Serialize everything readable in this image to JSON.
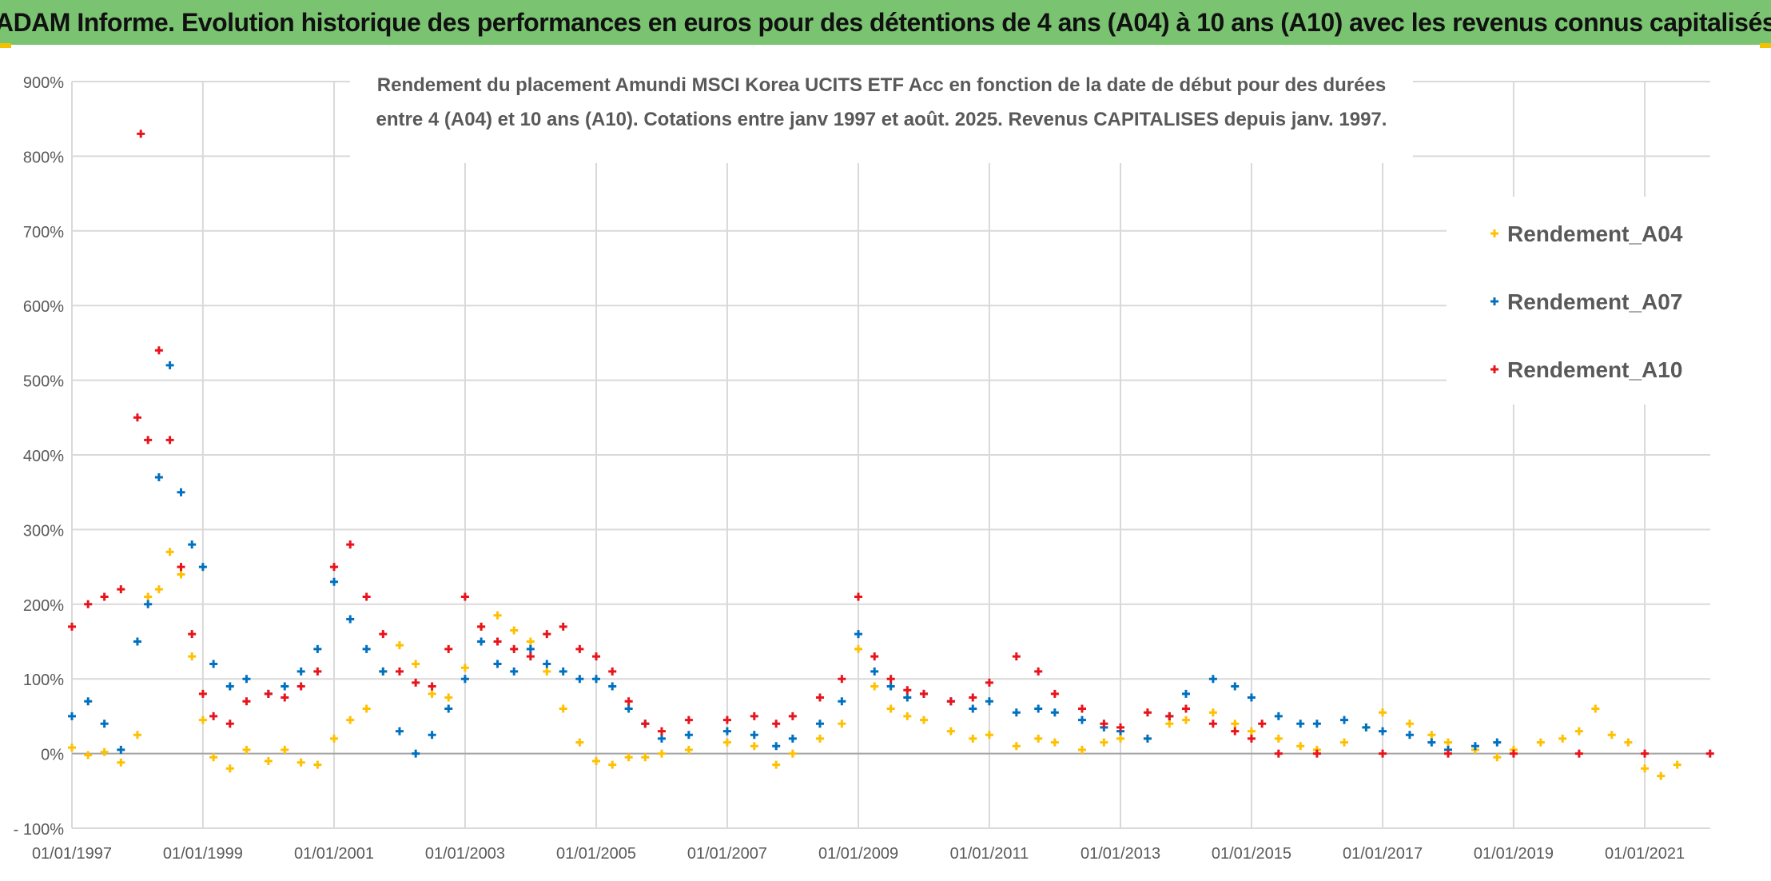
{
  "banner": {
    "title": "ADAM Informe. Evolution historique des performances en euros pour des détentions de 4 ans (A04) à 10 ans (A10) avec les revenus connus capitalisés"
  },
  "chart_data": {
    "type": "scatter",
    "title_line1": "Rendement du placement Amundi MSCI Korea UCITS ETF Acc en fonction de la date de début pour des durées",
    "title_line2": "entre 4 (A04) et 10 ans (A10). Cotations entre janv 1997 et août. 2025. Revenus CAPITALISES depuis janv. 1997.",
    "x_type": "date",
    "xlim": [
      "1997-01-01",
      "2022-01-01"
    ],
    "x_ticks": [
      "01/01/1997",
      "01/01/1999",
      "01/01/2001",
      "01/01/2003",
      "01/01/2005",
      "01/01/2007",
      "01/01/2009",
      "01/01/2011",
      "01/01/2013",
      "01/01/2015",
      "01/01/2017",
      "01/01/2019",
      "01/01/2021"
    ],
    "ylim": [
      -100,
      900
    ],
    "y_ticks": [
      "- 100%",
      "0%",
      "100%",
      "200%",
      "300%",
      "400%",
      "500%",
      "600%",
      "700%",
      "800%",
      "900%"
    ],
    "grid": true,
    "legend_position": "top-right",
    "series": [
      {
        "name": "Rendement_A04",
        "color": "#ffc000",
        "points": [
          [
            "1997-01-01",
            8
          ],
          [
            "1997-04-01",
            -2
          ],
          [
            "1997-07-01",
            2
          ],
          [
            "1997-10-01",
            -12
          ],
          [
            "1998-01-01",
            25
          ],
          [
            "1998-03-01",
            210
          ],
          [
            "1998-05-01",
            220
          ],
          [
            "1998-07-01",
            270
          ],
          [
            "1998-09-01",
            240
          ],
          [
            "1998-11-01",
            130
          ],
          [
            "1999-01-01",
            45
          ],
          [
            "1999-03-01",
            -5
          ],
          [
            "1999-06-01",
            -20
          ],
          [
            "1999-09-01",
            5
          ],
          [
            "2000-01-01",
            -10
          ],
          [
            "2000-04-01",
            5
          ],
          [
            "2000-07-01",
            -12
          ],
          [
            "2000-10-01",
            -15
          ],
          [
            "2001-01-01",
            20
          ],
          [
            "2001-04-01",
            45
          ],
          [
            "2001-07-01",
            60
          ],
          [
            "2001-10-01",
            110
          ],
          [
            "2002-01-01",
            145
          ],
          [
            "2002-04-01",
            120
          ],
          [
            "2002-07-01",
            80
          ],
          [
            "2002-10-01",
            75
          ],
          [
            "2003-01-01",
            115
          ],
          [
            "2003-04-01",
            170
          ],
          [
            "2003-07-01",
            185
          ],
          [
            "2003-10-01",
            165
          ],
          [
            "2004-01-01",
            150
          ],
          [
            "2004-04-01",
            110
          ],
          [
            "2004-07-01",
            60
          ],
          [
            "2004-10-01",
            15
          ],
          [
            "2005-01-01",
            -10
          ],
          [
            "2005-04-01",
            -15
          ],
          [
            "2005-07-01",
            -5
          ],
          [
            "2005-10-01",
            -5
          ],
          [
            "2006-01-01",
            0
          ],
          [
            "2006-06-01",
            5
          ],
          [
            "2007-01-01",
            15
          ],
          [
            "2007-06-01",
            10
          ],
          [
            "2007-10-01",
            -15
          ],
          [
            "2008-01-01",
            0
          ],
          [
            "2008-06-01",
            20
          ],
          [
            "2008-10-01",
            40
          ],
          [
            "2009-01-01",
            140
          ],
          [
            "2009-04-01",
            90
          ],
          [
            "2009-07-01",
            60
          ],
          [
            "2009-10-01",
            50
          ],
          [
            "2010-01-01",
            45
          ],
          [
            "2010-06-01",
            30
          ],
          [
            "2010-10-01",
            20
          ],
          [
            "2011-01-01",
            25
          ],
          [
            "2011-06-01",
            10
          ],
          [
            "2011-10-01",
            20
          ],
          [
            "2012-01-01",
            15
          ],
          [
            "2012-06-01",
            5
          ],
          [
            "2012-10-01",
            15
          ],
          [
            "2013-01-01",
            20
          ],
          [
            "2013-06-01",
            20
          ],
          [
            "2013-10-01",
            40
          ],
          [
            "2014-01-01",
            45
          ],
          [
            "2014-06-01",
            55
          ],
          [
            "2014-10-01",
            40
          ],
          [
            "2015-01-01",
            30
          ],
          [
            "2015-06-01",
            20
          ],
          [
            "2015-10-01",
            10
          ],
          [
            "2016-01-01",
            5
          ],
          [
            "2016-06-01",
            15
          ],
          [
            "2016-10-01",
            35
          ],
          [
            "2017-01-01",
            55
          ],
          [
            "2017-06-01",
            40
          ],
          [
            "2017-10-01",
            25
          ],
          [
            "2018-01-01",
            15
          ],
          [
            "2018-06-01",
            5
          ],
          [
            "2018-10-01",
            -5
          ],
          [
            "2019-01-01",
            5
          ],
          [
            "2019-06-01",
            15
          ],
          [
            "2019-10-01",
            20
          ],
          [
            "2020-01-01",
            30
          ],
          [
            "2020-04-01",
            60
          ],
          [
            "2020-07-01",
            25
          ],
          [
            "2020-10-01",
            15
          ],
          [
            "2021-01-01",
            -20
          ],
          [
            "2021-04-01",
            -30
          ],
          [
            "2021-07-01",
            -15
          ]
        ]
      },
      {
        "name": "Rendement_A07",
        "color": "#0070c0",
        "points": [
          [
            "1997-01-01",
            50
          ],
          [
            "1997-04-01",
            70
          ],
          [
            "1997-07-01",
            40
          ],
          [
            "1997-10-01",
            5
          ],
          [
            "1998-01-01",
            150
          ],
          [
            "1998-03-01",
            200
          ],
          [
            "1998-05-01",
            370
          ],
          [
            "1998-07-01",
            520
          ],
          [
            "1998-09-01",
            350
          ],
          [
            "1998-11-01",
            280
          ],
          [
            "1999-01-01",
            250
          ],
          [
            "1999-03-01",
            120
          ],
          [
            "1999-06-01",
            90
          ],
          [
            "1999-09-01",
            100
          ],
          [
            "2000-01-01",
            80
          ],
          [
            "2000-04-01",
            90
          ],
          [
            "2000-07-01",
            110
          ],
          [
            "2000-10-01",
            140
          ],
          [
            "2001-01-01",
            230
          ],
          [
            "2001-04-01",
            180
          ],
          [
            "2001-07-01",
            140
          ],
          [
            "2001-10-01",
            110
          ],
          [
            "2002-01-01",
            30
          ],
          [
            "2002-04-01",
            0
          ],
          [
            "2002-07-01",
            25
          ],
          [
            "2002-10-01",
            60
          ],
          [
            "2003-01-01",
            100
          ],
          [
            "2003-04-01",
            150
          ],
          [
            "2003-07-01",
            120
          ],
          [
            "2003-10-01",
            110
          ],
          [
            "2004-01-01",
            140
          ],
          [
            "2004-04-01",
            120
          ],
          [
            "2004-07-01",
            110
          ],
          [
            "2004-10-01",
            100
          ],
          [
            "2005-01-01",
            100
          ],
          [
            "2005-04-01",
            90
          ],
          [
            "2005-07-01",
            60
          ],
          [
            "2005-10-01",
            40
          ],
          [
            "2006-01-01",
            20
          ],
          [
            "2006-06-01",
            25
          ],
          [
            "2007-01-01",
            30
          ],
          [
            "2007-06-01",
            25
          ],
          [
            "2007-10-01",
            10
          ],
          [
            "2008-01-01",
            20
          ],
          [
            "2008-06-01",
            40
          ],
          [
            "2008-10-01",
            70
          ],
          [
            "2009-01-01",
            160
          ],
          [
            "2009-04-01",
            110
          ],
          [
            "2009-07-01",
            90
          ],
          [
            "2009-10-01",
            75
          ],
          [
            "2010-01-01",
            80
          ],
          [
            "2010-06-01",
            70
          ],
          [
            "2010-10-01",
            60
          ],
          [
            "2011-01-01",
            70
          ],
          [
            "2011-06-01",
            55
          ],
          [
            "2011-10-01",
            60
          ],
          [
            "2012-01-01",
            55
          ],
          [
            "2012-06-01",
            45
          ],
          [
            "2012-10-01",
            35
          ],
          [
            "2013-01-01",
            30
          ],
          [
            "2013-06-01",
            20
          ],
          [
            "2013-10-01",
            50
          ],
          [
            "2014-01-01",
            80
          ],
          [
            "2014-06-01",
            100
          ],
          [
            "2014-10-01",
            90
          ],
          [
            "2015-01-01",
            75
          ],
          [
            "2015-06-01",
            50
          ],
          [
            "2015-10-01",
            40
          ],
          [
            "2016-01-01",
            40
          ],
          [
            "2016-06-01",
            45
          ],
          [
            "2016-10-01",
            35
          ],
          [
            "2017-01-01",
            30
          ],
          [
            "2017-06-01",
            25
          ],
          [
            "2017-10-01",
            15
          ],
          [
            "2018-01-01",
            5
          ],
          [
            "2018-06-01",
            10
          ],
          [
            "2018-10-01",
            15
          ]
        ]
      },
      {
        "name": "Rendement_A10",
        "color": "#e8141b",
        "points": [
          [
            "1997-01-01",
            170
          ],
          [
            "1997-04-01",
            200
          ],
          [
            "1997-07-01",
            210
          ],
          [
            "1997-10-01",
            220
          ],
          [
            "1998-01-01",
            450
          ],
          [
            "1998-01-20",
            830
          ],
          [
            "1998-03-01",
            420
          ],
          [
            "1998-05-01",
            540
          ],
          [
            "1998-07-01",
            420
          ],
          [
            "1998-09-01",
            250
          ],
          [
            "1998-11-01",
            160
          ],
          [
            "1999-01-01",
            80
          ],
          [
            "1999-03-01",
            50
          ],
          [
            "1999-06-01",
            40
          ],
          [
            "1999-09-01",
            70
          ],
          [
            "2000-01-01",
            80
          ],
          [
            "2000-04-01",
            75
          ],
          [
            "2000-07-01",
            90
          ],
          [
            "2000-10-01",
            110
          ],
          [
            "2001-01-01",
            250
          ],
          [
            "2001-04-01",
            280
          ],
          [
            "2001-07-01",
            210
          ],
          [
            "2001-10-01",
            160
          ],
          [
            "2002-01-01",
            110
          ],
          [
            "2002-04-01",
            95
          ],
          [
            "2002-07-01",
            90
          ],
          [
            "2002-10-01",
            140
          ],
          [
            "2003-01-01",
            210
          ],
          [
            "2003-04-01",
            170
          ],
          [
            "2003-07-01",
            150
          ],
          [
            "2003-10-01",
            140
          ],
          [
            "2004-01-01",
            130
          ],
          [
            "2004-04-01",
            160
          ],
          [
            "2004-07-01",
            170
          ],
          [
            "2004-10-01",
            140
          ],
          [
            "2005-01-01",
            130
          ],
          [
            "2005-04-01",
            110
          ],
          [
            "2005-07-01",
            70
          ],
          [
            "2005-10-01",
            40
          ],
          [
            "2006-01-01",
            30
          ],
          [
            "2006-06-01",
            45
          ],
          [
            "2007-01-01",
            45
          ],
          [
            "2007-06-01",
            50
          ],
          [
            "2007-10-01",
            40
          ],
          [
            "2008-01-01",
            50
          ],
          [
            "2008-06-01",
            75
          ],
          [
            "2008-10-01",
            100
          ],
          [
            "2009-01-01",
            210
          ],
          [
            "2009-04-01",
            130
          ],
          [
            "2009-07-01",
            100
          ],
          [
            "2009-10-01",
            85
          ],
          [
            "2010-01-01",
            80
          ],
          [
            "2010-06-01",
            70
          ],
          [
            "2010-10-01",
            75
          ],
          [
            "2011-01-01",
            95
          ],
          [
            "2011-06-01",
            130
          ],
          [
            "2011-10-01",
            110
          ],
          [
            "2012-01-01",
            80
          ],
          [
            "2012-06-01",
            60
          ],
          [
            "2012-10-01",
            40
          ],
          [
            "2013-01-01",
            35
          ],
          [
            "2013-06-01",
            55
          ],
          [
            "2013-10-01",
            50
          ],
          [
            "2014-01-01",
            60
          ],
          [
            "2014-06-01",
            40
          ],
          [
            "2014-10-01",
            30
          ],
          [
            "2015-01-01",
            20
          ],
          [
            "2015-03-01",
            40
          ],
          [
            "2015-06-01",
            0
          ],
          [
            "2016-01-01",
            0
          ],
          [
            "2017-01-01",
            0
          ],
          [
            "2018-01-01",
            0
          ],
          [
            "2019-01-01",
            0
          ],
          [
            "2020-01-01",
            0
          ],
          [
            "2021-01-01",
            0
          ],
          [
            "2021-12-31",
            0
          ]
        ]
      }
    ]
  }
}
